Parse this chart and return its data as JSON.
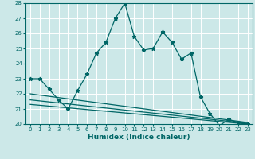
{
  "xlabel": "Humidex (Indice chaleur)",
  "bg_color": "#cce8e8",
  "line_color": "#006666",
  "grid_color": "#ffffff",
  "xlim": [
    -0.5,
    23.5
  ],
  "ylim": [
    20,
    28
  ],
  "xticks": [
    0,
    1,
    2,
    3,
    4,
    5,
    6,
    7,
    8,
    9,
    10,
    11,
    12,
    13,
    14,
    15,
    16,
    17,
    18,
    19,
    20,
    21,
    22,
    23
  ],
  "yticks": [
    20,
    21,
    22,
    23,
    24,
    25,
    26,
    27,
    28
  ],
  "series1": {
    "x": [
      0,
      1,
      2,
      3,
      4,
      5,
      6,
      7,
      8,
      9,
      10,
      11,
      12,
      13,
      14,
      15,
      16,
      17,
      18,
      19,
      20,
      21,
      22,
      23
    ],
    "y": [
      23.0,
      23.0,
      22.3,
      21.6,
      21.0,
      22.2,
      23.3,
      24.7,
      25.4,
      27.0,
      28.0,
      25.8,
      24.9,
      25.0,
      26.1,
      25.4,
      24.3,
      24.7,
      21.8,
      20.7,
      19.9,
      20.3,
      20.1,
      20.0
    ]
  },
  "series2": {
    "x": [
      0,
      23
    ],
    "y": [
      22.0,
      20.1
    ]
  },
  "series3": {
    "x": [
      0,
      23
    ],
    "y": [
      21.6,
      20.05
    ]
  },
  "series4": {
    "x": [
      0,
      23
    ],
    "y": [
      21.3,
      20.0
    ]
  }
}
